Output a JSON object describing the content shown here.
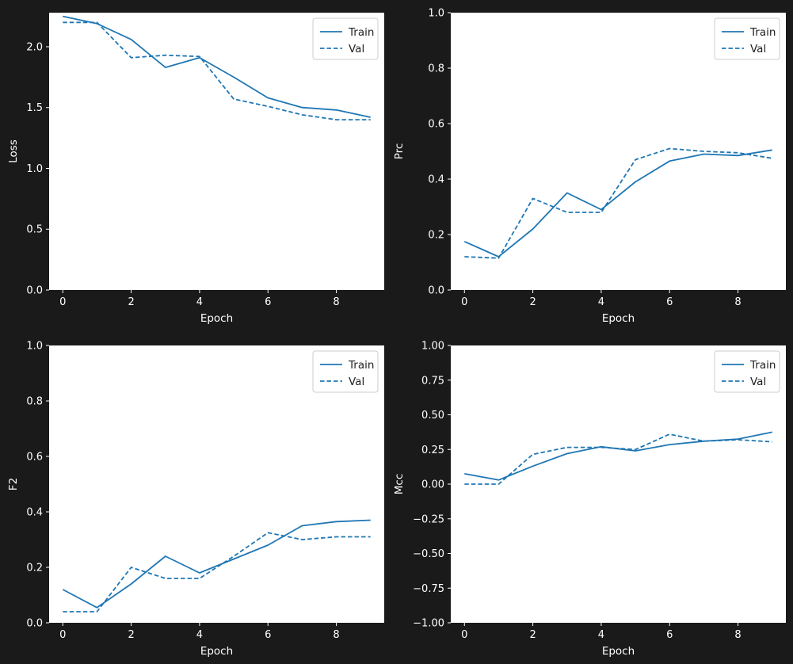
{
  "figure": {
    "background": "#1a1a1a",
    "plot_background": "#ffffff",
    "line_color": "#1f77b4"
  },
  "chart_data": [
    {
      "type": "line",
      "xlabel": "Epoch",
      "ylabel": "Loss",
      "x": [
        0,
        1,
        2,
        3,
        4,
        5,
        6,
        7,
        8,
        9
      ],
      "xticks": [
        0,
        2,
        4,
        6,
        8
      ],
      "xlim": [
        -0.4,
        9.4
      ],
      "ylim": [
        0,
        2.28
      ],
      "yticks": [
        0.0,
        0.5,
        1.0,
        1.5,
        2.0
      ],
      "ytick_labels": [
        "0.0",
        "0.5",
        "1.0",
        "1.5",
        "2.0"
      ],
      "grid": false,
      "legend": "top-right",
      "series": [
        {
          "name": "Train",
          "style": "solid",
          "values": [
            2.25,
            2.19,
            2.06,
            1.83,
            1.91,
            1.75,
            1.58,
            1.5,
            1.48,
            1.42
          ]
        },
        {
          "name": "Val",
          "style": "dashed",
          "values": [
            2.2,
            2.2,
            1.91,
            1.93,
            1.92,
            1.57,
            1.51,
            1.44,
            1.4,
            1.4
          ]
        }
      ]
    },
    {
      "type": "line",
      "xlabel": "Epoch",
      "ylabel": "Prc",
      "x": [
        0,
        1,
        2,
        3,
        4,
        5,
        6,
        7,
        8,
        9
      ],
      "xticks": [
        0,
        2,
        4,
        6,
        8
      ],
      "xlim": [
        -0.4,
        9.4
      ],
      "ylim": [
        0,
        1
      ],
      "yticks": [
        0.0,
        0.2,
        0.4,
        0.6,
        0.8,
        1.0
      ],
      "ytick_labels": [
        "0.0",
        "0.2",
        "0.4",
        "0.6",
        "0.8",
        "1.0"
      ],
      "grid": false,
      "legend": "top-right",
      "series": [
        {
          "name": "Train",
          "style": "solid",
          "values": [
            0.175,
            0.12,
            0.22,
            0.35,
            0.29,
            0.39,
            0.465,
            0.49,
            0.485,
            0.505
          ]
        },
        {
          "name": "Val",
          "style": "dashed",
          "values": [
            0.12,
            0.115,
            0.33,
            0.28,
            0.28,
            0.47,
            0.51,
            0.5,
            0.495,
            0.475
          ]
        }
      ]
    },
    {
      "type": "line",
      "xlabel": "Epoch",
      "ylabel": "F2",
      "x": [
        0,
        1,
        2,
        3,
        4,
        5,
        6,
        7,
        8,
        9
      ],
      "xticks": [
        0,
        2,
        4,
        6,
        8
      ],
      "xlim": [
        -0.4,
        9.4
      ],
      "ylim": [
        0,
        1
      ],
      "yticks": [
        0.0,
        0.2,
        0.4,
        0.6,
        0.8,
        1.0
      ],
      "ytick_labels": [
        "0.0",
        "0.2",
        "0.4",
        "0.6",
        "0.8",
        "1.0"
      ],
      "grid": false,
      "legend": "top-right",
      "series": [
        {
          "name": "Train",
          "style": "solid",
          "values": [
            0.12,
            0.055,
            0.14,
            0.24,
            0.18,
            0.23,
            0.28,
            0.35,
            0.365,
            0.37
          ]
        },
        {
          "name": "Val",
          "style": "dashed",
          "values": [
            0.04,
            0.04,
            0.2,
            0.16,
            0.16,
            0.24,
            0.325,
            0.3,
            0.31,
            0.31
          ]
        }
      ]
    },
    {
      "type": "line",
      "xlabel": "Epoch",
      "ylabel": "Mcc",
      "x": [
        0,
        1,
        2,
        3,
        4,
        5,
        6,
        7,
        8,
        9
      ],
      "xticks": [
        0,
        2,
        4,
        6,
        8
      ],
      "xlim": [
        -0.4,
        9.4
      ],
      "ylim": [
        -1,
        1
      ],
      "yticks": [
        -1.0,
        -0.75,
        -0.5,
        -0.25,
        0.0,
        0.25,
        0.5,
        0.75,
        1.0
      ],
      "ytick_labels": [
        "−1.00",
        "−0.75",
        "−0.50",
        "−0.25",
        "0.00",
        "0.25",
        "0.50",
        "0.75",
        "1.00"
      ],
      "grid": false,
      "legend": "top-right",
      "series": [
        {
          "name": "Train",
          "style": "solid",
          "values": [
            0.075,
            0.03,
            0.13,
            0.22,
            0.27,
            0.24,
            0.285,
            0.31,
            0.325,
            0.375
          ]
        },
        {
          "name": "Val",
          "style": "dashed",
          "values": [
            0.0,
            0.0,
            0.215,
            0.265,
            0.265,
            0.25,
            0.36,
            0.31,
            0.32,
            0.305
          ]
        }
      ]
    }
  ]
}
